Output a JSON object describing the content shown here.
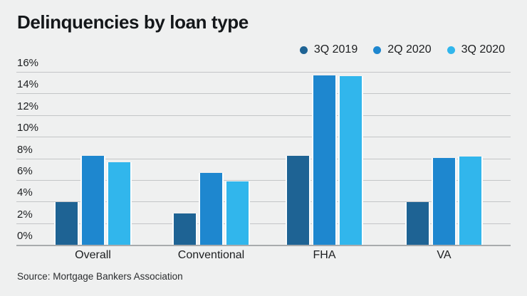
{
  "title": "Delinquencies by loan type",
  "source": "Source: Mortgage Bankers Association",
  "colors": {
    "background": "#eff0f0",
    "gridline": "#c3c5c7",
    "axis_line": "#a8abad",
    "text": "#1c1e20",
    "series_dark_blue": "#1e6394",
    "series_medium_blue": "#1e87cf",
    "series_light_blue": "#31b6ec"
  },
  "chart_data": {
    "type": "bar",
    "title": "Delinquencies by loan type",
    "categories": [
      "Overall",
      "Conventional",
      "FHA",
      "VA"
    ],
    "series": [
      {
        "name": "3Q 2019",
        "color": "#1e6394",
        "values": [
          3.97,
          2.92,
          8.22,
          3.93
        ]
      },
      {
        "name": "2Q 2020",
        "color": "#1e87cf",
        "values": [
          8.22,
          6.68,
          15.65,
          8.05
        ]
      },
      {
        "name": "3Q 2020",
        "color": "#31b6ec",
        "values": [
          7.65,
          5.86,
          15.59,
          8.16
        ]
      }
    ],
    "xlabel": "",
    "ylabel": "",
    "ylim": [
      0,
      16
    ],
    "ytick_step": 2,
    "ytick_suffix": "%",
    "grid": "horizontal",
    "legend_position": "top-right",
    "source": "Source: Mortgage Bankers Association"
  }
}
